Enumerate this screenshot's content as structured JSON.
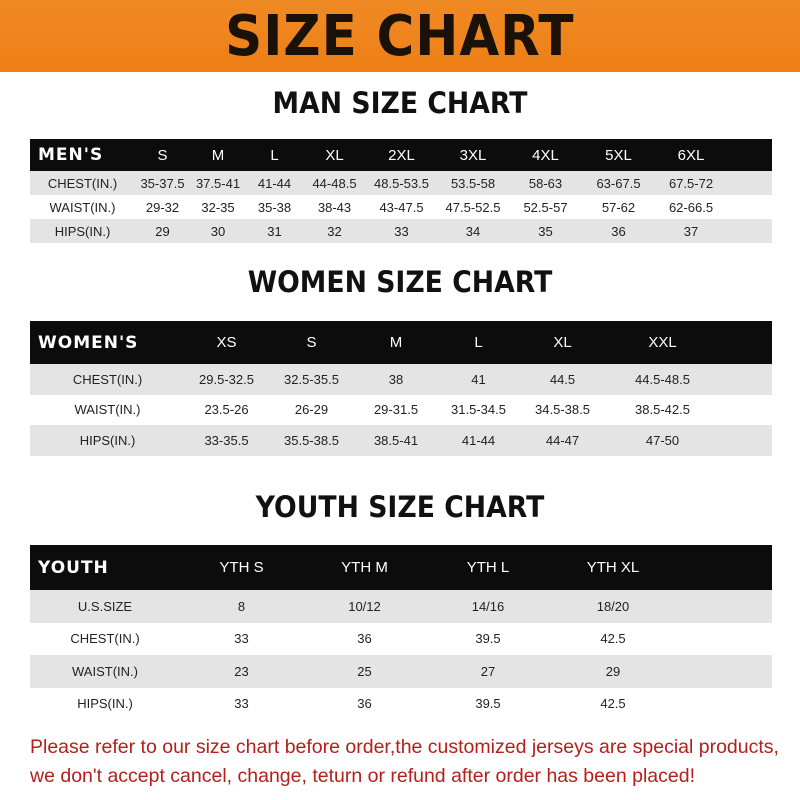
{
  "title": "SIZE CHART",
  "tables": [
    {
      "key": "men",
      "title": "MAN SIZE CHART",
      "header": [
        "MEN'S",
        "S",
        "M",
        "L",
        "XL",
        "2XL",
        "3XL",
        "4XL",
        "5XL",
        "6XL"
      ],
      "rows": [
        [
          "CHEST(IN.)",
          "35-37.5",
          "37.5-41",
          "41-44",
          "44-48.5",
          "48.5-53.5",
          "53.5-58",
          "58-63",
          "63-67.5",
          "67.5-72"
        ],
        [
          "WAIST(IN.)",
          "29-32",
          "32-35",
          "35-38",
          "38-43",
          "43-47.5",
          "47.5-52.5",
          "52.5-57",
          "57-62",
          "62-66.5"
        ],
        [
          "HIPS(IN.)",
          "29",
          "30",
          "31",
          "32",
          "33",
          "34",
          "35",
          "36",
          "37"
        ]
      ]
    },
    {
      "key": "women",
      "title": "WOMEN SIZE CHART",
      "header": [
        "WOMEN'S",
        "XS",
        "S",
        "M",
        "L",
        "XL",
        "XXL"
      ],
      "rows": [
        [
          "CHEST(IN.)",
          "29.5-32.5",
          "32.5-35.5",
          "38",
          "41",
          "44.5",
          "44.5-48.5"
        ],
        [
          "WAIST(IN.)",
          "23.5-26",
          "26-29",
          "29-31.5",
          "31.5-34.5",
          "34.5-38.5",
          "38.5-42.5"
        ],
        [
          "HIPS(IN.)",
          "33-35.5",
          "35.5-38.5",
          "38.5-41",
          "41-44",
          "44-47",
          "47-50"
        ]
      ]
    },
    {
      "key": "youth",
      "title": "YOUTH SIZE CHART",
      "header": [
        "YOUTH",
        "YTH S",
        "YTH M",
        "YTH L",
        "YTH XL"
      ],
      "rows": [
        [
          "U.S.SIZE",
          "8",
          "10/12",
          "14/16",
          "18/20"
        ],
        [
          "CHEST(IN.)",
          "33",
          "36",
          "39.5",
          "42.5"
        ],
        [
          "WAIST(IN.)",
          "23",
          "25",
          "27",
          "29"
        ],
        [
          "HIPS(IN.)",
          "33",
          "36",
          "39.5",
          "42.5"
        ]
      ]
    }
  ],
  "notice": [
    "Please refer to our size chart before order,the customized jerseys are special products,",
    "we don't accept cancel, change, teturn or refund after order has been placed!"
  ]
}
